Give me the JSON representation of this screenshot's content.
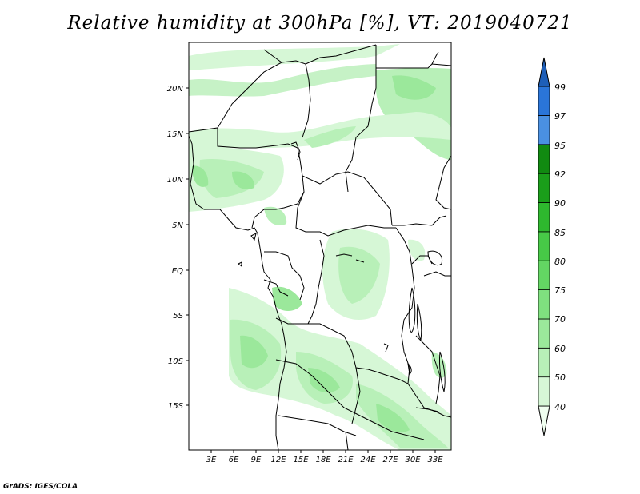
{
  "title": "Relative humidity at 300hPa [%], VT: 2019040721",
  "credit": "GrADS: IGES/COLA",
  "map": {
    "lat_ticks": [
      "20N",
      "15N",
      "10N",
      "5N",
      "EQ",
      "5S",
      "10S",
      "15S"
    ],
    "lon_ticks": [
      "3E",
      "6E",
      "9E",
      "12E",
      "15E",
      "18E",
      "21E",
      "24E",
      "27E",
      "30E",
      "33E"
    ]
  },
  "colorbar": {
    "labels": [
      "40",
      "50",
      "60",
      "70",
      "75",
      "80",
      "85",
      "90",
      "92",
      "95",
      "97",
      "99"
    ],
    "colors": [
      "#f0fff0",
      "#d6f7d6",
      "#b8f0b8",
      "#9be89b",
      "#7fe07f",
      "#63d663",
      "#47c947",
      "#2eb82e",
      "#1a9e1a",
      "#118a11",
      "#4a90e2",
      "#2a75d9",
      "#1e5fb8"
    ]
  }
}
